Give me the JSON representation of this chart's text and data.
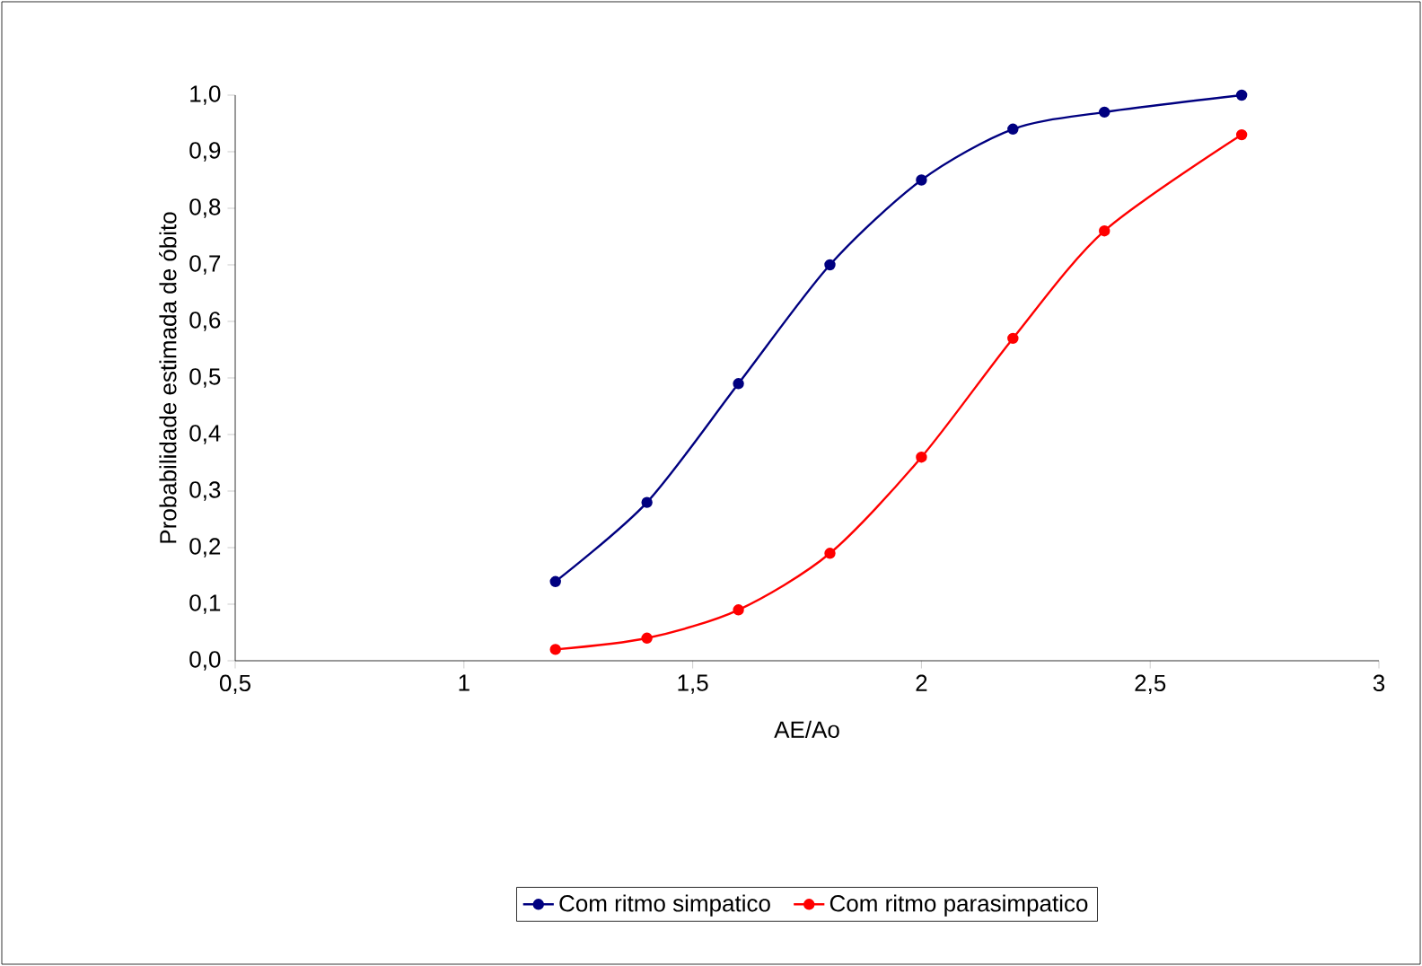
{
  "chart_data": {
    "type": "line",
    "xlabel": "AE/Ao",
    "ylabel": "Probabilidade estimada de óbito",
    "x": [
      1.2,
      1.4,
      1.6,
      1.8,
      2.0,
      2.2,
      2.4,
      2.7
    ],
    "series": [
      {
        "name": "Com ritmo simpatico",
        "color": "#000080",
        "values": [
          0.14,
          0.28,
          0.49,
          0.7,
          0.85,
          0.94,
          0.97,
          1.0
        ]
      },
      {
        "name": "Com ritmo parasimpatico",
        "color": "#ff0000",
        "values": [
          0.02,
          0.04,
          0.09,
          0.19,
          0.36,
          0.57,
          0.76,
          0.93
        ]
      }
    ],
    "xlim": [
      0.5,
      3
    ],
    "xticks": [
      {
        "value": 0.5,
        "label": "0,5"
      },
      1,
      {
        "value": 1.5,
        "label": "1,5"
      },
      2,
      {
        "value": 2.5,
        "label": "2,5"
      },
      3
    ],
    "ylim": [
      0,
      1
    ],
    "yticks": [
      {
        "value": 0,
        "label": "0,0"
      },
      {
        "value": 0.1,
        "label": "0,1"
      },
      {
        "value": 0.2,
        "label": "0,2"
      },
      {
        "value": 0.3,
        "label": "0,3"
      },
      {
        "value": 0.4,
        "label": "0,4"
      },
      {
        "value": 0.5,
        "label": "0,5"
      },
      {
        "value": 0.6,
        "label": "0,6"
      },
      {
        "value": 0.7,
        "label": "0,7"
      },
      {
        "value": 0.8,
        "label": "0,8"
      },
      {
        "value": 0.9,
        "label": "0,9"
      },
      {
        "value": 1,
        "label": "1,0"
      }
    ],
    "marker": "circle",
    "line_style": "solid",
    "grid": false,
    "legend": "bottom"
  }
}
